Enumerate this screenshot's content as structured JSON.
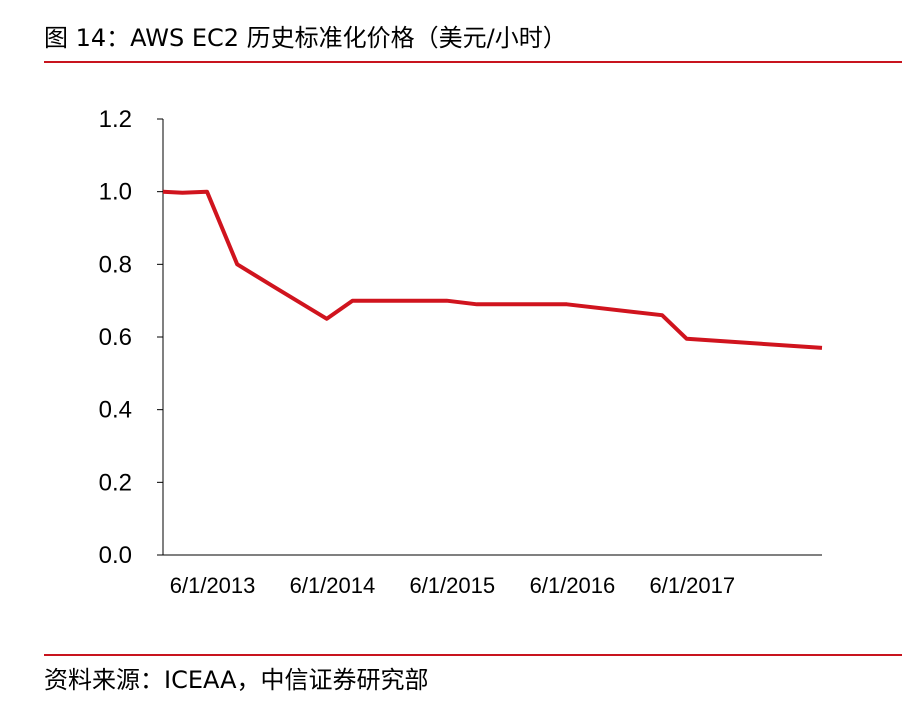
{
  "figure": {
    "title": "图 14：AWS EC2 历史标准化价格（美元/小时）",
    "source": "资料来源：ICEAA，中信证券研究部"
  },
  "colors": {
    "line": "#d0141e",
    "rule": "#c8141e",
    "axis": "#000000"
  },
  "chart_data": {
    "type": "line",
    "title": "",
    "xlabel": "",
    "ylabel": "",
    "ylim": [
      0,
      1.2
    ],
    "yticks": [
      "0.0",
      "0.2",
      "0.4",
      "0.6",
      "0.8",
      "1.0",
      "1.2"
    ],
    "xlim": [
      "2013-01-01",
      "2018-07-01"
    ],
    "xticks": [
      {
        "date": "2013-06-01",
        "label": "6/1/2013"
      },
      {
        "date": "2014-06-01",
        "label": "6/1/2014"
      },
      {
        "date": "2015-06-01",
        "label": "6/1/2015"
      },
      {
        "date": "2016-06-01",
        "label": "6/1/2016"
      },
      {
        "date": "2017-06-01",
        "label": "6/1/2017"
      }
    ],
    "grid": false,
    "legend": "none",
    "series": [
      {
        "points": [
          {
            "x": "2013-01-01",
            "y": 1.0
          },
          {
            "x": "2013-03-01",
            "y": 0.997
          },
          {
            "x": "2013-05-15",
            "y": 1.0
          },
          {
            "x": "2013-08-15",
            "y": 0.8
          },
          {
            "x": "2013-12-01",
            "y": 0.74
          },
          {
            "x": "2014-05-15",
            "y": 0.65
          },
          {
            "x": "2014-08-01",
            "y": 0.7
          },
          {
            "x": "2015-05-15",
            "y": 0.7
          },
          {
            "x": "2015-08-15",
            "y": 0.69
          },
          {
            "x": "2016-05-15",
            "y": 0.69
          },
          {
            "x": "2017-03-01",
            "y": 0.66
          },
          {
            "x": "2017-05-15",
            "y": 0.595
          },
          {
            "x": "2018-07-01",
            "y": 0.57
          }
        ]
      }
    ]
  }
}
